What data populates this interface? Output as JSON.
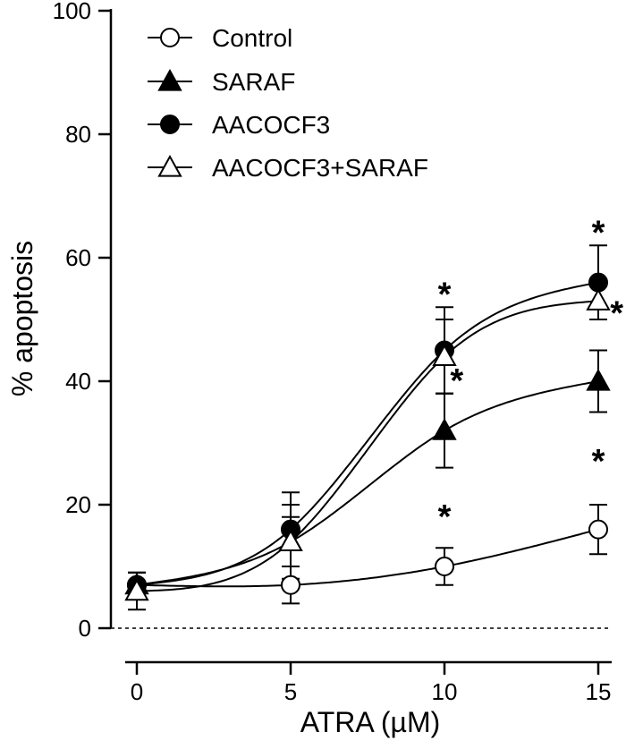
{
  "chart_data": {
    "type": "scatter",
    "xlabel": "ATRA (µM)",
    "ylabel": "% apoptosis",
    "xlim": [
      -1,
      16
    ],
    "ylim": [
      0,
      100
    ],
    "x_ticks": [
      0,
      5,
      10,
      15
    ],
    "y_ticks": [
      0,
      20,
      40,
      60,
      80,
      100
    ],
    "reference_line": {
      "y": 0,
      "style": "dotted"
    },
    "legend_position": "top-left",
    "x": [
      0,
      5,
      10,
      15
    ],
    "series": [
      {
        "name": "Control",
        "marker": "open-circle",
        "values": [
          7,
          7,
          10,
          16
        ],
        "errors": [
          2,
          3,
          3,
          4
        ]
      },
      {
        "name": "SARAF",
        "marker": "filled-triangle",
        "values": [
          7,
          14,
          32,
          40
        ],
        "errors": [
          2,
          6,
          6,
          5
        ]
      },
      {
        "name": "AACOCF3",
        "marker": "filled-circle",
        "values": [
          7,
          16,
          45,
          56
        ],
        "errors": [
          2,
          6,
          7,
          6
        ]
      },
      {
        "name": "AACOCF3+SARAF",
        "marker": "open-triangle",
        "values": [
          6,
          14,
          44,
          53
        ],
        "errors": [
          3,
          4,
          6,
          3
        ]
      }
    ],
    "annotations": [
      {
        "text": "*",
        "x": 10,
        "y": 56
      },
      {
        "text": "*",
        "x": 10.4,
        "y": 42
      },
      {
        "text": "*",
        "x": 10,
        "y": 20
      },
      {
        "text": "*",
        "x": 15,
        "y": 66
      },
      {
        "text": "*",
        "x": 15.6,
        "y": 53
      },
      {
        "text": "*",
        "x": 15,
        "y": 29
      }
    ]
  }
}
